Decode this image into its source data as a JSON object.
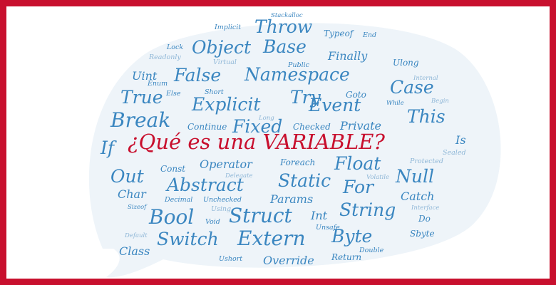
{
  "colors": {
    "frame": "#c8102e",
    "title": "#c8102e",
    "words": "#3a86c0",
    "words_light": "#8fb7d7",
    "bubble": "#eef4f9"
  },
  "title": "¿Qué es una VARIABLE?",
  "words": {
    "if": "If",
    "implicit": "Implicit",
    "throw": "Throw",
    "stackalloc": "Stackalloc",
    "lock": "Lock",
    "object": "Object",
    "base": "Base",
    "typeof": "Typeof",
    "end": "End",
    "readonly": "Readonly",
    "finally": "Finally",
    "virtual": "Virtual",
    "public": "Public",
    "ulong": "Ulong",
    "uint": "Uint",
    "false": "False",
    "namespace": "Namespace",
    "enum": "Enum",
    "internal": "Internal",
    "case": "Case",
    "true": "True",
    "else": "Else",
    "short": "Short",
    "try": "Try",
    "goto": "Goto",
    "explicit": "Explicit",
    "event": "Event",
    "while": "While",
    "begin": "Begin",
    "break": "Break",
    "this": "This",
    "continue": "Continue",
    "fixed": "Fixed",
    "long": "Long",
    "checked": "Checked",
    "private": "Private",
    "is": "Is",
    "sealed": "Sealed",
    "const": "Const",
    "operator": "Operator",
    "foreach": "Foreach",
    "float": "Float",
    "protected": "Protected",
    "out": "Out",
    "delegate": "Delegate",
    "static": "Static",
    "null": "Null",
    "volatile": "Volatile",
    "abstract": "Abstract",
    "for": "For",
    "char": "Char",
    "decimal": "Decimal",
    "unchecked": "Unchecked",
    "params": "Params",
    "catch": "Catch",
    "sizeof": "Sizeof",
    "interface": "Interface",
    "bool": "Bool",
    "using": "Using",
    "struct": "Struct",
    "int": "Int",
    "string": "String",
    "void": "Void",
    "do": "Do",
    "unsafe": "Unsafe",
    "default": "Default",
    "sbyte": "Sbyte",
    "switch": "Switch",
    "extern": "Extern",
    "byte": "Byte",
    "class": "Class",
    "double": "Double",
    "return": "Return",
    "ushort": "Ushort",
    "override": "Override"
  }
}
